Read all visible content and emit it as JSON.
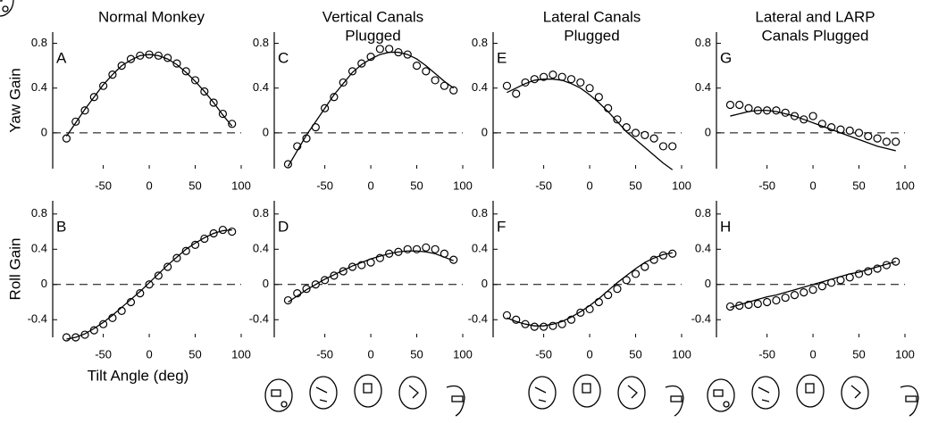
{
  "chart_data": [
    {
      "type": "line",
      "label": "A",
      "title": [
        "Normal Monkey"
      ],
      "ylabel": "Yaw Gain",
      "x": [
        -90,
        -80,
        -70,
        -60,
        -50,
        -40,
        -30,
        -20,
        -10,
        0,
        10,
        20,
        30,
        40,
        50,
        60,
        70,
        80,
        90
      ],
      "series": [
        {
          "style": "markers",
          "color": "#000000",
          "values": [
            -0.05,
            0.1,
            0.2,
            0.32,
            0.42,
            0.52,
            0.6,
            0.66,
            0.69,
            0.7,
            0.69,
            0.67,
            0.62,
            0.55,
            0.47,
            0.37,
            0.27,
            0.17,
            0.08
          ]
        },
        {
          "style": "line",
          "color": "#000000",
          "values": [
            -0.03,
            0.09,
            0.21,
            0.32,
            0.43,
            0.52,
            0.6,
            0.65,
            0.69,
            0.7,
            0.69,
            0.66,
            0.61,
            0.54,
            0.46,
            0.37,
            0.27,
            0.16,
            0.06
          ]
        }
      ],
      "xlim": [
        -105,
        100
      ],
      "xticks": [
        -50,
        0,
        50,
        100
      ],
      "ylim": [
        -0.32,
        0.9
      ],
      "yticks": [
        0.8,
        0.4,
        0
      ],
      "zero_line": true
    },
    {
      "type": "line",
      "label": "B",
      "ylabel": "Roll Gain",
      "xlabel": "Tilt Angle (deg)",
      "x": [
        -90,
        -80,
        -70,
        -60,
        -50,
        -40,
        -30,
        -20,
        -10,
        0,
        10,
        20,
        30,
        40,
        50,
        60,
        70,
        80,
        90
      ],
      "series": [
        {
          "style": "markers",
          "color": "#000000",
          "values": [
            -0.6,
            -0.6,
            -0.57,
            -0.52,
            -0.45,
            -0.38,
            -0.3,
            -0.2,
            -0.1,
            0,
            0.1,
            0.2,
            0.3,
            0.38,
            0.45,
            0.52,
            0.58,
            0.62,
            0.6
          ]
        },
        {
          "style": "line",
          "color": "#000000",
          "values": [
            -0.62,
            -0.6,
            -0.56,
            -0.5,
            -0.43,
            -0.35,
            -0.26,
            -0.17,
            -0.08,
            0.02,
            0.12,
            0.22,
            0.31,
            0.4,
            0.47,
            0.53,
            0.58,
            0.61,
            0.62
          ]
        }
      ],
      "xlim": [
        -105,
        100
      ],
      "xticks": [
        -50,
        0,
        50,
        100
      ],
      "ylim": [
        -0.6,
        0.95
      ],
      "yticks": [
        0.8,
        0.4,
        0,
        -0.4
      ],
      "zero_line": true
    },
    {
      "type": "line",
      "label": "C",
      "title": [
        "Vertical Canals",
        "Plugged"
      ],
      "x": [
        -90,
        -80,
        -70,
        -60,
        -50,
        -40,
        -30,
        -20,
        -10,
        0,
        10,
        20,
        30,
        40,
        50,
        60,
        70,
        80,
        90
      ],
      "series": [
        {
          "style": "markers",
          "color": "#000000",
          "values": [
            -0.28,
            -0.12,
            -0.05,
            0.05,
            0.22,
            0.32,
            0.45,
            0.55,
            0.62,
            0.68,
            0.75,
            0.75,
            0.72,
            0.7,
            0.6,
            0.55,
            0.47,
            0.42,
            0.38
          ]
        },
        {
          "style": "line",
          "color": "#000000",
          "values": [
            -0.3,
            -0.16,
            -0.02,
            0.1,
            0.22,
            0.34,
            0.44,
            0.54,
            0.61,
            0.66,
            0.7,
            0.72,
            0.72,
            0.7,
            0.66,
            0.6,
            0.53,
            0.46,
            0.4
          ]
        }
      ],
      "xlim": [
        -105,
        100
      ],
      "xticks": [
        -50,
        0,
        50,
        100
      ],
      "ylim": [
        -0.32,
        0.9
      ],
      "yticks": [
        0.8,
        0.4,
        0
      ],
      "zero_line": true
    },
    {
      "type": "line",
      "label": "D",
      "x": [
        -90,
        -80,
        -70,
        -60,
        -50,
        -40,
        -30,
        -20,
        -10,
        0,
        10,
        20,
        30,
        40,
        50,
        60,
        70,
        80,
        90
      ],
      "series": [
        {
          "style": "markers",
          "color": "#000000",
          "values": [
            -0.18,
            -0.1,
            -0.05,
            0,
            0.05,
            0.1,
            0.15,
            0.2,
            0.22,
            0.25,
            0.3,
            0.35,
            0.37,
            0.4,
            0.4,
            0.42,
            0.4,
            0.35,
            0.28
          ]
        },
        {
          "style": "line",
          "color": "#000000",
          "values": [
            -0.2,
            -0.13,
            -0.06,
            0,
            0.06,
            0.11,
            0.16,
            0.21,
            0.25,
            0.29,
            0.32,
            0.35,
            0.37,
            0.38,
            0.38,
            0.37,
            0.35,
            0.31,
            0.27
          ]
        }
      ],
      "xlim": [
        -105,
        100
      ],
      "xticks": [
        -50,
        0,
        50,
        100
      ],
      "ylim": [
        -0.6,
        0.95
      ],
      "yticks": [
        0.8,
        0.4,
        0,
        -0.4
      ],
      "zero_line": true
    },
    {
      "type": "line",
      "label": "E",
      "title": [
        "Lateral Canals",
        "Plugged"
      ],
      "x": [
        -90,
        -80,
        -70,
        -60,
        -50,
        -40,
        -30,
        -20,
        -10,
        0,
        10,
        20,
        30,
        40,
        50,
        60,
        70,
        80,
        90
      ],
      "series": [
        {
          "style": "markers",
          "color": "#000000",
          "values": [
            0.42,
            0.35,
            0.45,
            0.48,
            0.5,
            0.52,
            0.5,
            0.48,
            0.45,
            0.4,
            0.32,
            0.22,
            0.12,
            0.05,
            0,
            -0.02,
            -0.05,
            -0.12,
            -0.12
          ]
        },
        {
          "style": "line",
          "color": "#000000",
          "values": [
            0.36,
            0.4,
            0.44,
            0.47,
            0.48,
            0.48,
            0.47,
            0.44,
            0.4,
            0.34,
            0.27,
            0.19,
            0.1,
            0.01,
            -0.06,
            -0.13,
            -0.2,
            -0.27,
            -0.33
          ]
        }
      ],
      "xlim": [
        -105,
        100
      ],
      "xticks": [
        -50,
        0,
        50,
        100
      ],
      "ylim": [
        -0.32,
        0.9
      ],
      "yticks": [
        0.8,
        0.4,
        0
      ],
      "zero_line": true
    },
    {
      "type": "line",
      "label": "F",
      "x": [
        -90,
        -80,
        -70,
        -60,
        -50,
        -40,
        -30,
        -20,
        -10,
        0,
        10,
        20,
        30,
        40,
        50,
        60,
        70,
        80,
        90
      ],
      "series": [
        {
          "style": "markers",
          "color": "#000000",
          "values": [
            -0.35,
            -0.4,
            -0.45,
            -0.48,
            -0.48,
            -0.47,
            -0.45,
            -0.4,
            -0.32,
            -0.28,
            -0.2,
            -0.12,
            -0.05,
            0.05,
            0.12,
            0.2,
            0.28,
            0.33,
            0.35
          ]
        },
        {
          "style": "line",
          "color": "#000000",
          "values": [
            -0.38,
            -0.42,
            -0.45,
            -0.47,
            -0.47,
            -0.45,
            -0.42,
            -0.37,
            -0.31,
            -0.24,
            -0.16,
            -0.07,
            0.02,
            0.1,
            0.18,
            0.25,
            0.3,
            0.34,
            0.36
          ]
        }
      ],
      "xlim": [
        -105,
        100
      ],
      "xticks": [
        -50,
        0,
        50,
        100
      ],
      "ylim": [
        -0.6,
        0.95
      ],
      "yticks": [
        0.8,
        0.4,
        0,
        -0.4
      ],
      "zero_line": true
    },
    {
      "type": "line",
      "label": "G",
      "title": [
        "Lateral and LARP",
        "Canals Plugged"
      ],
      "x": [
        -90,
        -80,
        -70,
        -60,
        -50,
        -40,
        -30,
        -20,
        -10,
        0,
        10,
        20,
        30,
        40,
        50,
        60,
        70,
        80,
        90
      ],
      "series": [
        {
          "style": "markers",
          "color": "#000000",
          "values": [
            0.25,
            0.25,
            0.22,
            0.2,
            0.2,
            0.2,
            0.18,
            0.15,
            0.12,
            0.15,
            0.08,
            0.05,
            0.03,
            0.02,
            0,
            -0.03,
            -0.05,
            -0.08,
            -0.08
          ]
        },
        {
          "style": "line",
          "color": "#000000",
          "values": [
            0.15,
            0.17,
            0.19,
            0.2,
            0.2,
            0.19,
            0.17,
            0.15,
            0.12,
            0.09,
            0.06,
            0.03,
            0,
            -0.03,
            -0.06,
            -0.09,
            -0.12,
            -0.14,
            -0.16
          ]
        }
      ],
      "xlim": [
        -105,
        100
      ],
      "xticks": [
        -50,
        0,
        50,
        100
      ],
      "ylim": [
        -0.32,
        0.9
      ],
      "yticks": [
        0.8,
        0.4,
        0
      ],
      "zero_line": true
    },
    {
      "type": "line",
      "label": "H",
      "x": [
        -90,
        -80,
        -70,
        -60,
        -50,
        -40,
        -30,
        -20,
        -10,
        0,
        10,
        20,
        30,
        40,
        50,
        60,
        70,
        80,
        90
      ],
      "series": [
        {
          "style": "markers",
          "color": "#000000",
          "values": [
            -0.25,
            -0.24,
            -0.23,
            -0.22,
            -0.2,
            -0.18,
            -0.15,
            -0.12,
            -0.09,
            -0.06,
            -0.02,
            0.02,
            0.05,
            0.08,
            0.12,
            0.15,
            0.18,
            0.22,
            0.26
          ]
        },
        {
          "style": "line",
          "color": "#000000",
          "values": [
            -0.26,
            -0.23,
            -0.2,
            -0.17,
            -0.14,
            -0.12,
            -0.09,
            -0.06,
            -0.03,
            0,
            0.03,
            0.06,
            0.09,
            0.12,
            0.14,
            0.17,
            0.2,
            0.23,
            0.26
          ]
        }
      ],
      "xlim": [
        -105,
        100
      ],
      "xticks": [
        -50,
        0,
        50,
        100
      ],
      "ylim": [
        -0.6,
        0.95
      ],
      "yticks": [
        0.8,
        0.4,
        0,
        -0.4
      ],
      "zero_line": true
    }
  ]
}
